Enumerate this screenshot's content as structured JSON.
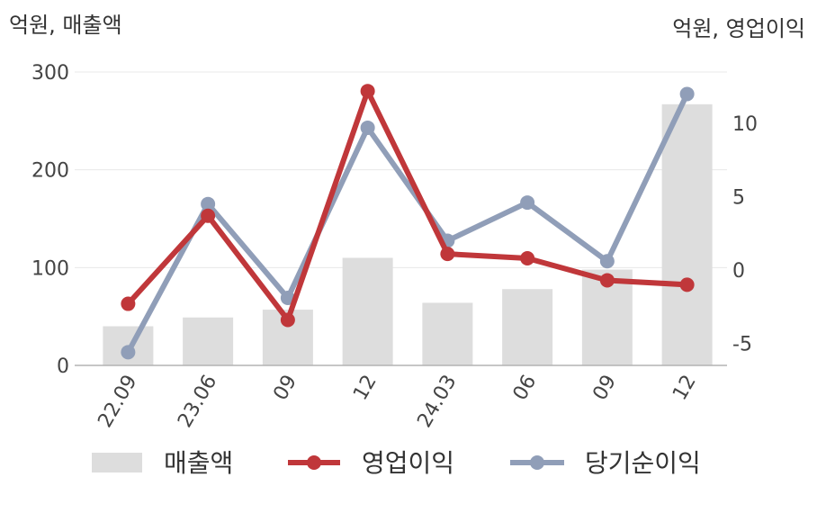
{
  "chart_data": {
    "type": "bar+line",
    "categories": [
      "22.09",
      "23.06",
      "09",
      "12",
      "24.03",
      "06",
      "09",
      "12"
    ],
    "left_axis": {
      "label": "억원, 매출액",
      "ticks": [
        "300",
        "200",
        "100",
        "0"
      ],
      "ylim": [
        0,
        300
      ]
    },
    "right_axis": {
      "label": "억원, 영업이익",
      "ticks": [
        "10",
        "5",
        "0",
        "-5"
      ],
      "ylim": [
        -6.5,
        13.5
      ]
    },
    "series": [
      {
        "name": "매출액",
        "type": "bar",
        "axis": "left",
        "color": "#dddddd",
        "values": [
          40,
          49,
          57,
          110,
          64,
          78,
          98,
          267
        ]
      },
      {
        "name": "영업이익",
        "type": "line",
        "axis": "right",
        "color": "#c0373a",
        "values": [
          -2.3,
          3.7,
          -3.4,
          12.2,
          1.1,
          0.8,
          -0.7,
          -1.0
        ]
      },
      {
        "name": "당기순이익",
        "type": "line",
        "axis": "right",
        "color": "#909eb8",
        "values": [
          -5.6,
          4.5,
          -1.9,
          9.7,
          2.0,
          4.6,
          0.6,
          12.0
        ]
      }
    ],
    "grid": true,
    "legend_position": "bottom"
  }
}
